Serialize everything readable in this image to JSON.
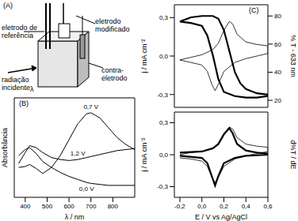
{
  "diagram": {
    "title": "(A)",
    "reference_electrode": "eletrodo de referência",
    "modified_electrode": "eletrodo modificado",
    "counter_electrode": "contra-eletrodo",
    "radiation": "radiação incidente",
    "wavelength": "λ"
  },
  "chart_data": [
    {
      "type": "line",
      "title": "(B)",
      "x_label": "λ / nm",
      "y_label": "Absorbância",
      "xlim": [
        350,
        900
      ],
      "xticks": [
        400,
        500,
        600,
        700,
        800
      ],
      "ylim": [
        0,
        1
      ],
      "tick_labels": "x",
      "series": [
        {
          "name": "0,0 V",
          "color": "#000000",
          "x": [
            370,
            400,
            420,
            450,
            480,
            520,
            560,
            600,
            640,
            680,
            700,
            740,
            780,
            820,
            860,
            900
          ],
          "values": [
            0.42,
            0.48,
            0.5,
            0.44,
            0.36,
            0.3,
            0.25,
            0.21,
            0.18,
            0.15,
            0.14,
            0.13,
            0.12,
            0.12,
            0.12,
            0.12
          ]
        },
        {
          "name": "0,7 V",
          "color": "#000000",
          "x": [
            370,
            400,
            420,
            450,
            480,
            520,
            560,
            600,
            640,
            680,
            700,
            740,
            780,
            820,
            860,
            900
          ],
          "values": [
            0.3,
            0.31,
            0.33,
            0.29,
            0.24,
            0.3,
            0.42,
            0.58,
            0.74,
            0.84,
            0.85,
            0.8,
            0.7,
            0.6,
            0.53,
            0.48
          ]
        },
        {
          "name": "1,2 V",
          "color": "#000000",
          "x": [
            370,
            400,
            420,
            450,
            480,
            520,
            560,
            600,
            640,
            680,
            700,
            740,
            780,
            820,
            860,
            900
          ],
          "values": [
            0.34,
            0.45,
            0.52,
            0.5,
            0.45,
            0.4,
            0.38,
            0.37,
            0.38,
            0.4,
            0.41,
            0.43,
            0.45,
            0.47,
            0.48,
            0.49
          ]
        }
      ]
    },
    {
      "type": "line",
      "title": "(C)",
      "y_label": "j / mA cm⁻²",
      "y2_label": "% T - 633 nm",
      "xlim": [
        -0.25,
        0.6
      ],
      "xticks": [
        -0.2,
        0,
        0.2,
        0.4,
        0.6
      ],
      "ylim": [
        -0.4,
        0.4
      ],
      "yticks": [
        {
          "value": -0.3,
          "label": "-0,3"
        },
        {
          "value": 0,
          "label": "0,0"
        },
        {
          "value": 0.3,
          "label": "0,3"
        }
      ],
      "y2lim": [
        15,
        88
      ],
      "y2ticks": [
        20,
        40,
        60,
        80
      ],
      "tick_labels": "y",
      "series": [
        {
          "color": "#000000",
          "x": [
            -0.2,
            -0.1,
            0,
            0.1,
            0.15,
            0.2,
            0.25,
            0.28,
            0.32,
            0.4,
            0.5,
            0.6,
            0.6,
            0.5,
            0.4,
            0.3,
            0.2,
            0.15,
            0.12,
            0.09,
            0.05,
            0,
            -0.1,
            -0.2
          ],
          "values": [
            -0.03,
            -0.01,
            0.01,
            0.05,
            0.1,
            0.2,
            0.27,
            0.25,
            0.17,
            0.11,
            0.09,
            0.08,
            0.02,
            0,
            -0.02,
            -0.05,
            -0.12,
            -0.22,
            -0.27,
            -0.22,
            -0.12,
            -0.07,
            -0.05,
            -0.03
          ]
        },
        {
          "color": "#000000",
          "axis": "y2",
          "x": [
            -0.2,
            -0.1,
            0,
            0.1,
            0.15,
            0.2,
            0.25,
            0.3,
            0.35,
            0.4,
            0.5,
            0.6,
            0.6,
            0.5,
            0.4,
            0.3,
            0.2,
            0.15,
            0.1,
            0.05,
            0,
            -0.1,
            -0.2
          ],
          "values": [
            76,
            79,
            80,
            80,
            78,
            70,
            55,
            40,
            32,
            28,
            25,
            24,
            23,
            22,
            22,
            23,
            26,
            35,
            52,
            66,
            73,
            75,
            76
          ]
        }
      ]
    },
    {
      "type": "line",
      "x_label": "E / V vs Ag/AgCl",
      "y_label": "j / mA cm⁻²",
      "y2_label": "d%T / dE",
      "xlim": [
        -0.25,
        0.6
      ],
      "xticks": [
        {
          "value": -0.2,
          "label": "-0,2"
        },
        {
          "value": 0,
          "label": "0,0"
        },
        {
          "value": 0.2,
          "label": "0,2"
        },
        {
          "value": 0.4,
          "label": "0,4"
        },
        {
          "value": 0.6,
          "label": "0,6"
        }
      ],
      "ylim": [
        -0.4,
        0.4
      ],
      "yticks": [
        {
          "value": -0.3,
          "label": "-0,3"
        },
        {
          "value": 0,
          "label": "0,0"
        },
        {
          "value": 0.3,
          "label": "0,3"
        }
      ],
      "y2lim": [
        -0.4,
        0.4
      ],
      "series": [
        {
          "color": "#000000",
          "x": [
            -0.2,
            -0.1,
            0,
            0.1,
            0.15,
            0.2,
            0.25,
            0.28,
            0.32,
            0.4,
            0.5,
            0.6,
            0.6,
            0.5,
            0.4,
            0.3,
            0.2,
            0.15,
            0.12,
            0.09,
            0.05,
            0,
            -0.1,
            -0.2
          ],
          "values": [
            0.0,
            0.02,
            0.03,
            0.06,
            0.11,
            0.2,
            0.26,
            0.24,
            0.16,
            0.1,
            0.08,
            0.07,
            0.03,
            0.01,
            -0.01,
            -0.04,
            -0.11,
            -0.21,
            -0.26,
            -0.21,
            -0.11,
            -0.06,
            -0.04,
            -0.03
          ]
        },
        {
          "color": "#000000",
          "axis": "y2",
          "x": [
            -0.2,
            0,
            0.1,
            0.15,
            0.2,
            0.25,
            0.28,
            0.32,
            0.4,
            0.5,
            0.6,
            0.6,
            0.4,
            0.3,
            0.2,
            0.15,
            0.12,
            0.09,
            0.05,
            0,
            -0.2
          ],
          "values": [
            0.02,
            0.03,
            0.06,
            0.1,
            0.19,
            0.25,
            0.2,
            0.1,
            0.04,
            0.02,
            0.01,
            0,
            -0.01,
            -0.03,
            -0.08,
            -0.2,
            -0.29,
            -0.2,
            -0.08,
            -0.03,
            -0.01
          ]
        }
      ]
    }
  ]
}
